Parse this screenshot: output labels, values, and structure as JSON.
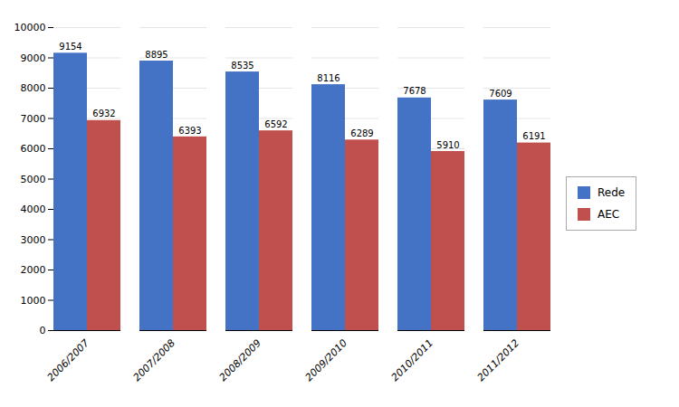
{
  "chart_data": {
    "type": "bar",
    "categories": [
      "2006/2007",
      "2007/2008",
      "2008/2009",
      "2009/2010",
      "2010/2011",
      "2011/2012"
    ],
    "series": [
      {
        "name": "Rede",
        "color": "#4472C4",
        "values": [
          9154,
          8895,
          8535,
          8116,
          7678,
          7609
        ]
      },
      {
        "name": "AEC",
        "color": "#C0504D",
        "values": [
          6932,
          6393,
          6592,
          6289,
          5910,
          6191
        ]
      }
    ],
    "ylim": [
      0,
      10000
    ],
    "yticks": [
      0,
      1000,
      2000,
      3000,
      4000,
      5000,
      6000,
      7000,
      8000,
      9000,
      10000
    ],
    "grid": true,
    "legend": "right",
    "data_labels": true
  }
}
